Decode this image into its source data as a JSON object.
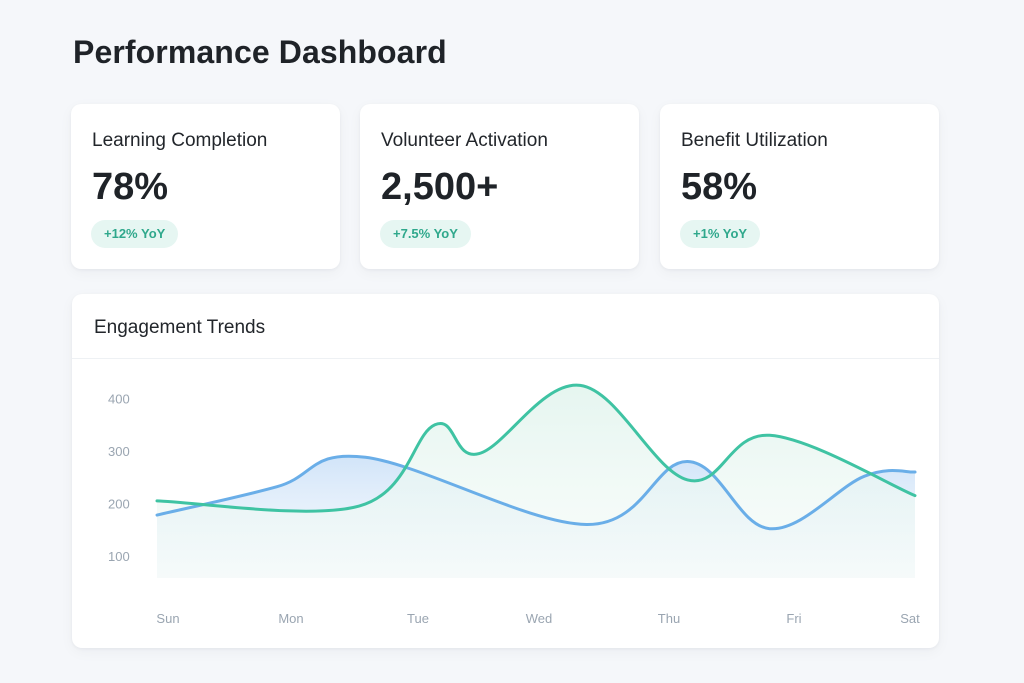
{
  "page": {
    "title": "Performance Dashboard"
  },
  "kpis": [
    {
      "label": "Learning Completion",
      "value": "78%",
      "change": "+12% YoY"
    },
    {
      "label": "Volunteer Activation",
      "value": "2,500+",
      "change": "+7.5% YoY"
    },
    {
      "label": "Benefit Utilization",
      "value": "58%",
      "change": "+1% YoY"
    }
  ],
  "colors": {
    "accent_green": "#3fc3a3",
    "accent_blue": "#6aaee8",
    "badge_bg": "#e6f6f2",
    "badge_text": "#2fa88c"
  },
  "chart": {
    "title": "Engagement Trends"
  },
  "chart_data": {
    "type": "line",
    "title": "Engagement Trends",
    "categories": [
      "Sun",
      "Mon",
      "Tue",
      "Wed",
      "Thu",
      "Fri",
      "Sat"
    ],
    "y_ticks": [
      400,
      300,
      200,
      100
    ],
    "grid": false,
    "series": [
      {
        "color": "#3fc3a3",
        "fill": "#e8f6f1",
        "smooth": true,
        "x": [
          0,
          1.6,
          2.2,
          2.55,
          3.35,
          4.2,
          4.85,
          6.0
        ],
        "values": [
          205,
          195,
          350,
          295,
          425,
          245,
          330,
          215
        ]
      },
      {
        "color": "#6aaee8",
        "fill": "#d6e8fb",
        "smooth": true,
        "x": [
          0,
          0.95,
          1.65,
          3.4,
          4.2,
          4.85,
          5.6,
          6.0
        ],
        "values": [
          178,
          232,
          288,
          160,
          280,
          152,
          252,
          260
        ]
      }
    ]
  }
}
